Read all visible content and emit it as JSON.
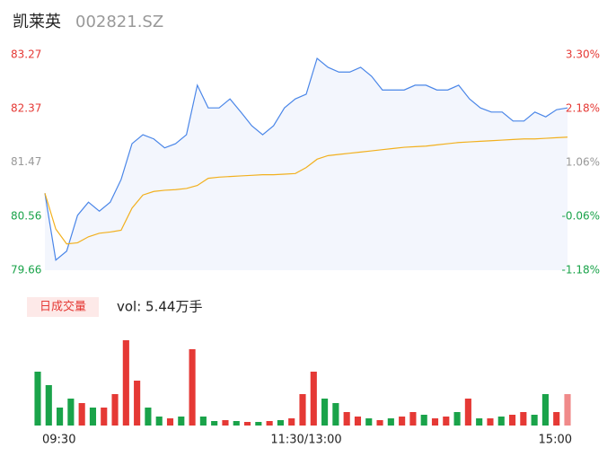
{
  "chart_data": [
    {
      "type": "line",
      "title": "凯莱英",
      "subtitle": "002821.SZ",
      "categories": [
        "09:30",
        null,
        null,
        null,
        null,
        null,
        null,
        null,
        null,
        null,
        null,
        null,
        null,
        null,
        null,
        null,
        null,
        null,
        null,
        null,
        null,
        null,
        null,
        null,
        "11:30/13:00",
        null,
        null,
        null,
        null,
        null,
        null,
        null,
        null,
        null,
        null,
        null,
        null,
        null,
        null,
        null,
        null,
        null,
        null,
        null,
        null,
        null,
        null,
        null,
        "15:00"
      ],
      "series": [
        {
          "color": "#4a86e8",
          "values": [
            80.95,
            79.83,
            79.98,
            80.58,
            80.8,
            80.65,
            80.8,
            81.18,
            81.78,
            81.93,
            81.86,
            81.71,
            81.78,
            81.93,
            82.76,
            82.38,
            82.38,
            82.53,
            82.31,
            82.08,
            81.93,
            82.08,
            82.38,
            82.53,
            82.61,
            83.21,
            83.06,
            82.98,
            82.98,
            83.06,
            82.91,
            82.68,
            82.68,
            82.68,
            82.76,
            82.76,
            82.68,
            82.68,
            82.76,
            82.53,
            82.38,
            82.31,
            82.31,
            82.16,
            82.16,
            82.31,
            82.23,
            82.35,
            82.38
          ]
        },
        {
          "color": "#f2b01e",
          "values": [
            80.95,
            80.35,
            80.1,
            80.12,
            80.22,
            80.28,
            80.3,
            80.33,
            80.7,
            80.92,
            80.98,
            81.0,
            81.01,
            81.03,
            81.08,
            81.2,
            81.22,
            81.23,
            81.24,
            81.25,
            81.26,
            81.26,
            81.27,
            81.28,
            81.38,
            81.52,
            81.58,
            81.6,
            81.62,
            81.64,
            81.66,
            81.68,
            81.7,
            81.72,
            81.73,
            81.74,
            81.76,
            81.78,
            81.8,
            81.81,
            81.82,
            81.83,
            81.84,
            81.85,
            81.86,
            81.86,
            81.87,
            81.88,
            81.89
          ]
        }
      ],
      "ylim": [
        79.66,
        83.27
      ],
      "yticks": [
        83.27,
        82.37,
        81.47,
        80.56,
        79.66
      ],
      "y2lim": [
        -1.18,
        3.3
      ],
      "y2ticks": [
        {
          "value": 3.3,
          "label": "3.30%"
        },
        {
          "value": 2.18,
          "label": "2.18%"
        },
        {
          "value": 1.06,
          "label": "1.06%"
        },
        {
          "value": -0.06,
          "label": "-0.06%"
        },
        {
          "value": -1.18,
          "label": "-1.18%"
        }
      ],
      "up_color": "#e53935",
      "down_color": "#1aa34a",
      "flat_color": "#999999",
      "fill": "#f3f6fd"
    },
    {
      "type": "bar",
      "title": "日成交量",
      "subtitle": "vol: 5.44万手",
      "values": [
        60,
        45,
        20,
        30,
        25,
        20,
        20,
        35,
        95,
        50,
        20,
        10,
        8,
        10,
        85,
        10,
        5,
        6,
        5,
        4,
        4,
        5,
        6,
        8,
        35,
        60,
        30,
        25,
        15,
        10,
        8,
        6,
        8,
        10,
        15,
        12,
        8,
        10,
        15,
        30,
        8,
        8,
        10,
        12,
        15,
        12,
        35,
        15,
        35
      ],
      "colors": [
        "#1aa34a",
        "#1aa34a",
        "#1aa34a",
        "#1aa34a",
        "#e53935",
        "#1aa34a",
        "#e53935",
        "#e53935",
        "#e53935",
        "#e53935",
        "#1aa34a",
        "#1aa34a",
        "#e53935",
        "#1aa34a",
        "#e53935",
        "#1aa34a",
        "#1aa34a",
        "#e53935",
        "#1aa34a",
        "#e53935",
        "#1aa34a",
        "#e53935",
        "#1aa34a",
        "#e53935",
        "#e53935",
        "#e53935",
        "#1aa34a",
        "#1aa34a",
        "#e53935",
        "#e53935",
        "#1aa34a",
        "#e53935",
        "#1aa34a",
        "#e53935",
        "#e53935",
        "#1aa34a",
        "#e53935",
        "#e53935",
        "#1aa34a",
        "#e53935",
        "#1aa34a",
        "#e53935",
        "#1aa34a",
        "#e53935",
        "#e53935",
        "#1aa34a",
        "#1aa34a",
        "#e53935",
        "#f08a8a"
      ]
    }
  ]
}
